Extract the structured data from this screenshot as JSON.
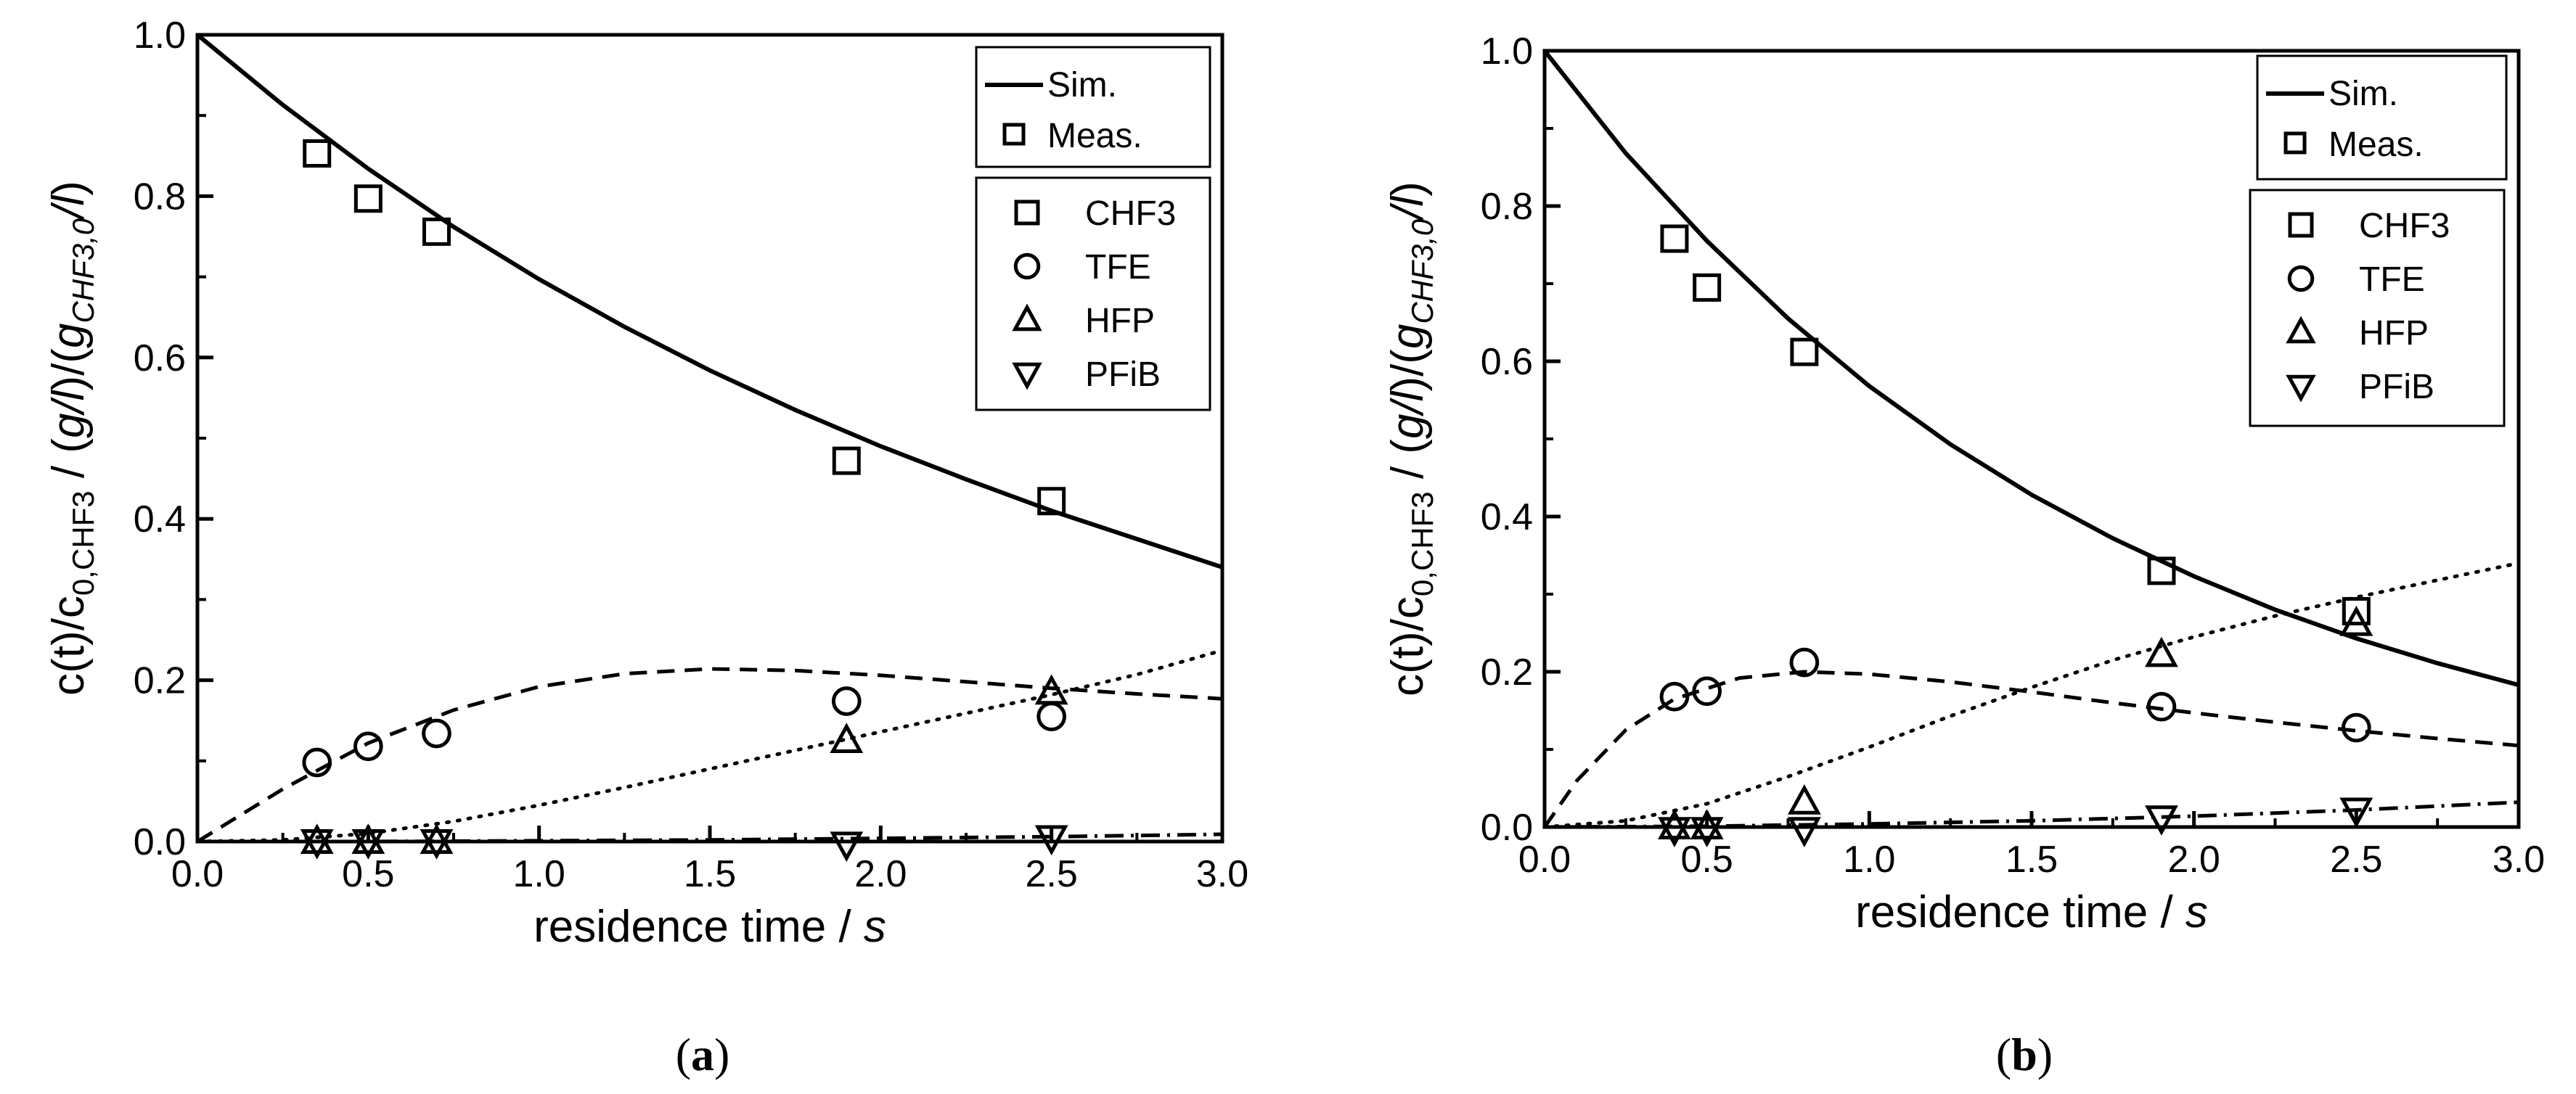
{
  "chart_data": [
    {
      "type": "line",
      "panel": "a",
      "caption": "(a)",
      "caption_letter": "a",
      "xlabel": "residence time / s",
      "xlabel_text": "residence time / ",
      "xlabel_unit": "s",
      "ylabel": "c(t)/c0,CHF3 / (g/l)/(gCHF3,0/l)",
      "xlim": [
        0,
        3
      ],
      "ylim": [
        0,
        1
      ],
      "xticks": [
        "0.0",
        "0.5",
        "1.0",
        "1.5",
        "2.0",
        "2.5",
        "3.0"
      ],
      "yticks": [
        "0.0",
        "0.2",
        "0.4",
        "0.6",
        "0.8",
        "1.0"
      ],
      "legend_style": {
        "sim": "Sim.",
        "meas": "Meas."
      },
      "legend_species": [
        "CHF3",
        "TFE",
        "HFP",
        "PFiB"
      ],
      "measured": [
        {
          "name": "CHF3",
          "marker": "square",
          "x": [
            0.35,
            0.5,
            0.7,
            1.9,
            2.5
          ],
          "y": [
            0.853,
            0.797,
            0.756,
            0.472,
            0.422
          ]
        },
        {
          "name": "TFE",
          "marker": "circle",
          "x": [
            0.35,
            0.5,
            0.7,
            1.9,
            2.5
          ],
          "y": [
            0.098,
            0.118,
            0.134,
            0.174,
            0.155
          ]
        },
        {
          "name": "HFP",
          "marker": "triangle-up",
          "x": [
            0.35,
            0.5,
            0.7,
            1.9,
            2.5
          ],
          "y": [
            0.0,
            0.0,
            0.0,
            0.125,
            0.185
          ]
        },
        {
          "name": "PFiB",
          "marker": "triangle-down",
          "x": [
            0.35,
            0.5,
            0.7,
            1.9,
            2.5
          ],
          "y": [
            0.0,
            0.0,
            0.0,
            -0.003,
            0.005
          ]
        }
      ],
      "simulated": [
        {
          "name": "CHF3",
          "style": "solid",
          "x": [
            0,
            0.25,
            0.5,
            0.75,
            1.0,
            1.25,
            1.5,
            1.75,
            2.0,
            2.25,
            2.5,
            2.75,
            3.0
          ],
          "y": [
            1.0,
            0.913,
            0.834,
            0.762,
            0.697,
            0.638,
            0.584,
            0.535,
            0.49,
            0.449,
            0.41,
            0.375,
            0.34
          ]
        },
        {
          "name": "TFE",
          "style": "dashed",
          "x": [
            0,
            0.25,
            0.5,
            0.75,
            1.0,
            1.25,
            1.5,
            1.75,
            2.0,
            2.25,
            2.5,
            2.75,
            3.0
          ],
          "y": [
            0.0,
            0.065,
            0.122,
            0.163,
            0.192,
            0.208,
            0.214,
            0.212,
            0.206,
            0.198,
            0.19,
            0.183,
            0.177
          ]
        },
        {
          "name": "HFP",
          "style": "dotted",
          "x": [
            0,
            0.25,
            0.5,
            0.75,
            1.0,
            1.25,
            1.5,
            1.75,
            2.0,
            2.25,
            2.5,
            2.75,
            3.0
          ],
          "y": [
            0.0,
            0.002,
            0.01,
            0.025,
            0.045,
            0.067,
            0.09,
            0.113,
            0.136,
            0.159,
            0.182,
            0.207,
            0.237
          ]
        },
        {
          "name": "PFiB",
          "style": "dashdot",
          "x": [
            0,
            0.5,
            1.0,
            1.5,
            2.0,
            2.5,
            3.0
          ],
          "y": [
            0.0,
            0.0,
            0.001,
            0.002,
            0.004,
            0.006,
            0.009
          ]
        }
      ]
    },
    {
      "type": "line",
      "panel": "b",
      "caption": "(b)",
      "caption_letter": "b",
      "xlabel": "residence time / s",
      "xlabel_text": "residence time / ",
      "xlabel_unit": "s",
      "ylabel": "c(t)/c0,CHF3 / (g/l)/(gCHF3,0/l)",
      "xlim": [
        0,
        3
      ],
      "ylim": [
        0,
        1
      ],
      "xticks": [
        "0.0",
        "0.5",
        "1.0",
        "1.5",
        "2.0",
        "2.5",
        "3.0"
      ],
      "yticks": [
        "0.0",
        "0.2",
        "0.4",
        "0.6",
        "0.8",
        "1.0"
      ],
      "legend_style": {
        "sim": "Sim.",
        "meas": "Meas."
      },
      "legend_species": [
        "CHF3",
        "TFE",
        "HFP",
        "PFiB"
      ],
      "measured": [
        {
          "name": "CHF3",
          "marker": "square",
          "x": [
            0.4,
            0.5,
            0.8,
            1.9,
            2.5
          ],
          "y": [
            0.758,
            0.695,
            0.612,
            0.33,
            0.278
          ]
        },
        {
          "name": "TFE",
          "marker": "circle",
          "x": [
            0.4,
            0.5,
            0.8,
            1.9,
            2.5
          ],
          "y": [
            0.168,
            0.175,
            0.212,
            0.155,
            0.128
          ]
        },
        {
          "name": "HFP",
          "marker": "triangle-up",
          "x": [
            0.4,
            0.5,
            0.8,
            1.9,
            2.5
          ],
          "y": [
            0.0,
            0.0,
            0.032,
            0.222,
            0.262
          ]
        },
        {
          "name": "PFiB",
          "marker": "triangle-down",
          "x": [
            0.4,
            0.5,
            0.8,
            1.9,
            2.5
          ],
          "y": [
            -0.003,
            -0.003,
            -0.003,
            0.012,
            0.022
          ]
        }
      ],
      "simulated": [
        {
          "name": "CHF3",
          "style": "solid",
          "x": [
            0,
            0.25,
            0.5,
            0.75,
            1.0,
            1.25,
            1.5,
            1.75,
            2.0,
            2.25,
            2.5,
            2.75,
            3.0
          ],
          "y": [
            1.0,
            0.868,
            0.755,
            0.655,
            0.568,
            0.493,
            0.428,
            0.372,
            0.323,
            0.28,
            0.243,
            0.211,
            0.183
          ]
        },
        {
          "name": "TFE",
          "style": "dashed",
          "x": [
            0,
            0.1,
            0.25,
            0.4,
            0.6,
            0.8,
            1.0,
            1.25,
            1.5,
            1.75,
            2.0,
            2.25,
            2.5,
            2.75,
            3.0
          ],
          "y": [
            0.0,
            0.06,
            0.125,
            0.165,
            0.192,
            0.2,
            0.197,
            0.187,
            0.174,
            0.16,
            0.147,
            0.135,
            0.124,
            0.114,
            0.105
          ]
        },
        {
          "name": "HFP",
          "style": "dotted",
          "x": [
            0,
            0.25,
            0.5,
            0.75,
            1.0,
            1.25,
            1.5,
            1.75,
            2.0,
            2.25,
            2.5,
            2.75,
            3.0
          ],
          "y": [
            0.0,
            0.008,
            0.03,
            0.065,
            0.103,
            0.143,
            0.18,
            0.215,
            0.245,
            0.272,
            0.296,
            0.318,
            0.34
          ]
        },
        {
          "name": "PFiB",
          "style": "dashdot",
          "x": [
            0,
            0.5,
            1.0,
            1.5,
            2.0,
            2.5,
            3.0
          ],
          "y": [
            0.0,
            0.001,
            0.004,
            0.008,
            0.014,
            0.022,
            0.032
          ]
        }
      ]
    }
  ]
}
